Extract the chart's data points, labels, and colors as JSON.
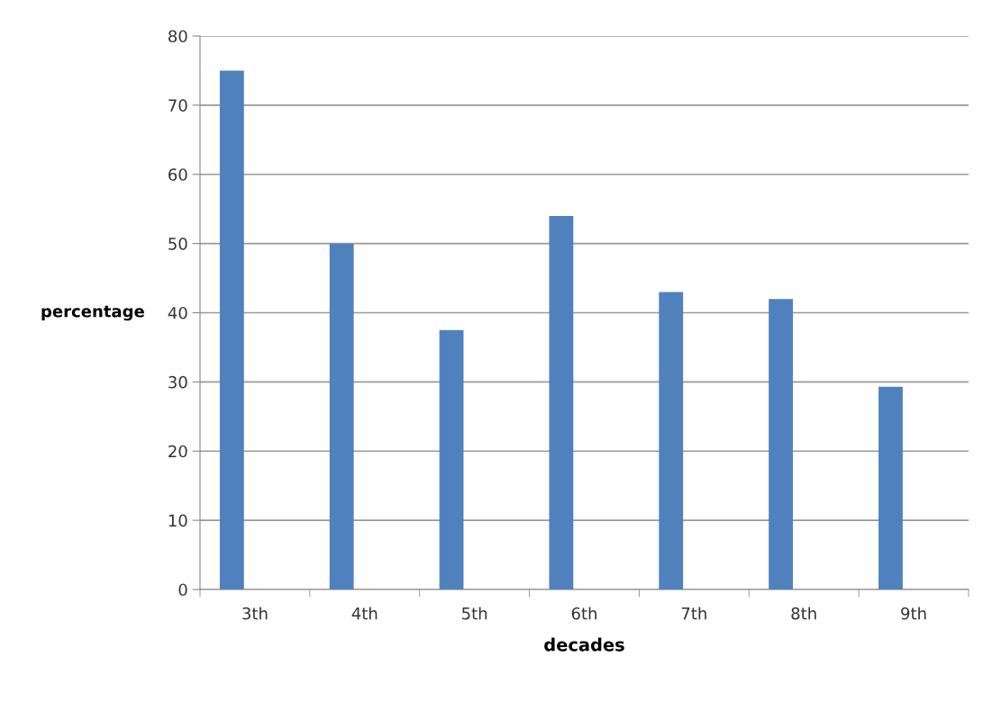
{
  "chart_data": {
    "type": "bar",
    "xlabel": "decades",
    "ylabel": "percentage",
    "categories": [
      "3th",
      "4th",
      "5th",
      "6th",
      "7th",
      "8th",
      "9th"
    ],
    "values": [
      75,
      50,
      37.5,
      54,
      43,
      42,
      29.3
    ],
    "color": "#4f81bd",
    "ylim": [
      0,
      80
    ],
    "yticks": [
      0,
      10,
      20,
      30,
      40,
      50,
      60,
      70,
      80
    ],
    "grid": "y",
    "legend": false
  }
}
